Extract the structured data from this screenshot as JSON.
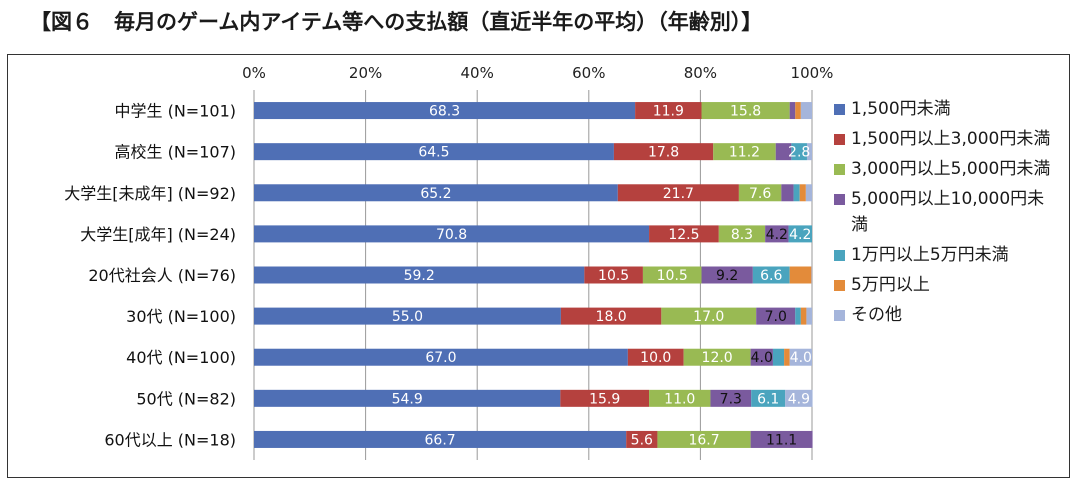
{
  "title": "【図６　毎月のゲーム内アイテム等への支払額（直近半年の平均）（年齢別）】",
  "chart_data": {
    "type": "bar",
    "orientation": "horizontal",
    "stacked": true,
    "xlim": [
      0,
      100
    ],
    "x_ticks": [
      "0%",
      "20%",
      "40%",
      "60%",
      "80%",
      "100%"
    ],
    "grid": true,
    "legend_position": "right",
    "categories": [
      "中学生 (N=101)",
      "高校生 (N=107)",
      "大学生[未成年] (N=92)",
      "大学生[成年] (N=24)",
      "20代社会人 (N=76)",
      "30代 (N=100)",
      "40代 (N=100)",
      "50代 (N=82)",
      "60代以上 (N=18)"
    ],
    "series": [
      {
        "name": "1,500円未満",
        "color": "#4f6fb5",
        "values": [
          68.3,
          64.5,
          65.2,
          70.8,
          59.2,
          55.0,
          67.0,
          54.9,
          66.7
        ],
        "labels": [
          "68.3",
          "64.5",
          "65.2",
          "70.8",
          "59.2",
          "55.0",
          "67.0",
          "54.9",
          "66.7"
        ]
      },
      {
        "name": "1,500円以上3,000円未満",
        "color": "#b5413e",
        "values": [
          11.9,
          17.8,
          21.7,
          12.5,
          10.5,
          18.0,
          10.0,
          15.9,
          5.6
        ],
        "labels": [
          "11.9",
          "17.8",
          "21.7",
          "12.5",
          "10.5",
          "18.0",
          "10.0",
          "15.9",
          "5.6"
        ]
      },
      {
        "name": "3,000円以上5,000円未満",
        "color": "#99ba53",
        "values": [
          15.8,
          11.2,
          7.6,
          8.3,
          10.5,
          17.0,
          12.0,
          11.0,
          16.7
        ],
        "labels": [
          "15.8",
          "11.2",
          "7.6",
          "8.3",
          "10.5",
          "17.0",
          "12.0",
          "11.0",
          "16.7"
        ]
      },
      {
        "name": "5,000円以上10,000円未満",
        "color": "#7a5a9e",
        "values": [
          1.0,
          2.8,
          2.2,
          4.2,
          9.2,
          7.0,
          4.0,
          7.3,
          11.1
        ],
        "labels": [
          "",
          "",
          "",
          "4.2",
          "9.2",
          "7.0",
          "4.0",
          "7.3",
          "11.1"
        ]
      },
      {
        "name": "1万円以上5万円未満",
        "color": "#4aa4be",
        "values": [
          0.0,
          2.8,
          1.1,
          4.2,
          6.6,
          1.0,
          2.0,
          6.1,
          0.0
        ],
        "labels": [
          "",
          "2.8",
          "",
          "4.2",
          "6.6",
          "",
          "",
          "6.1",
          ""
        ]
      },
      {
        "name": "5万円以上",
        "color": "#e38b3a",
        "values": [
          1.0,
          0.0,
          1.1,
          0.0,
          3.9,
          1.0,
          1.0,
          0.0,
          0.0
        ],
        "labels": [
          "",
          "",
          "",
          "",
          "",
          "",
          "",
          "",
          ""
        ]
      },
      {
        "name": "その他",
        "color": "#a5b5db",
        "values": [
          2.0,
          0.9,
          1.1,
          0.0,
          0.1,
          1.0,
          4.0,
          4.9,
          0.0
        ],
        "labels": [
          "",
          "",
          "",
          "",
          "",
          "",
          "4.0",
          "4.9",
          ""
        ]
      }
    ]
  }
}
